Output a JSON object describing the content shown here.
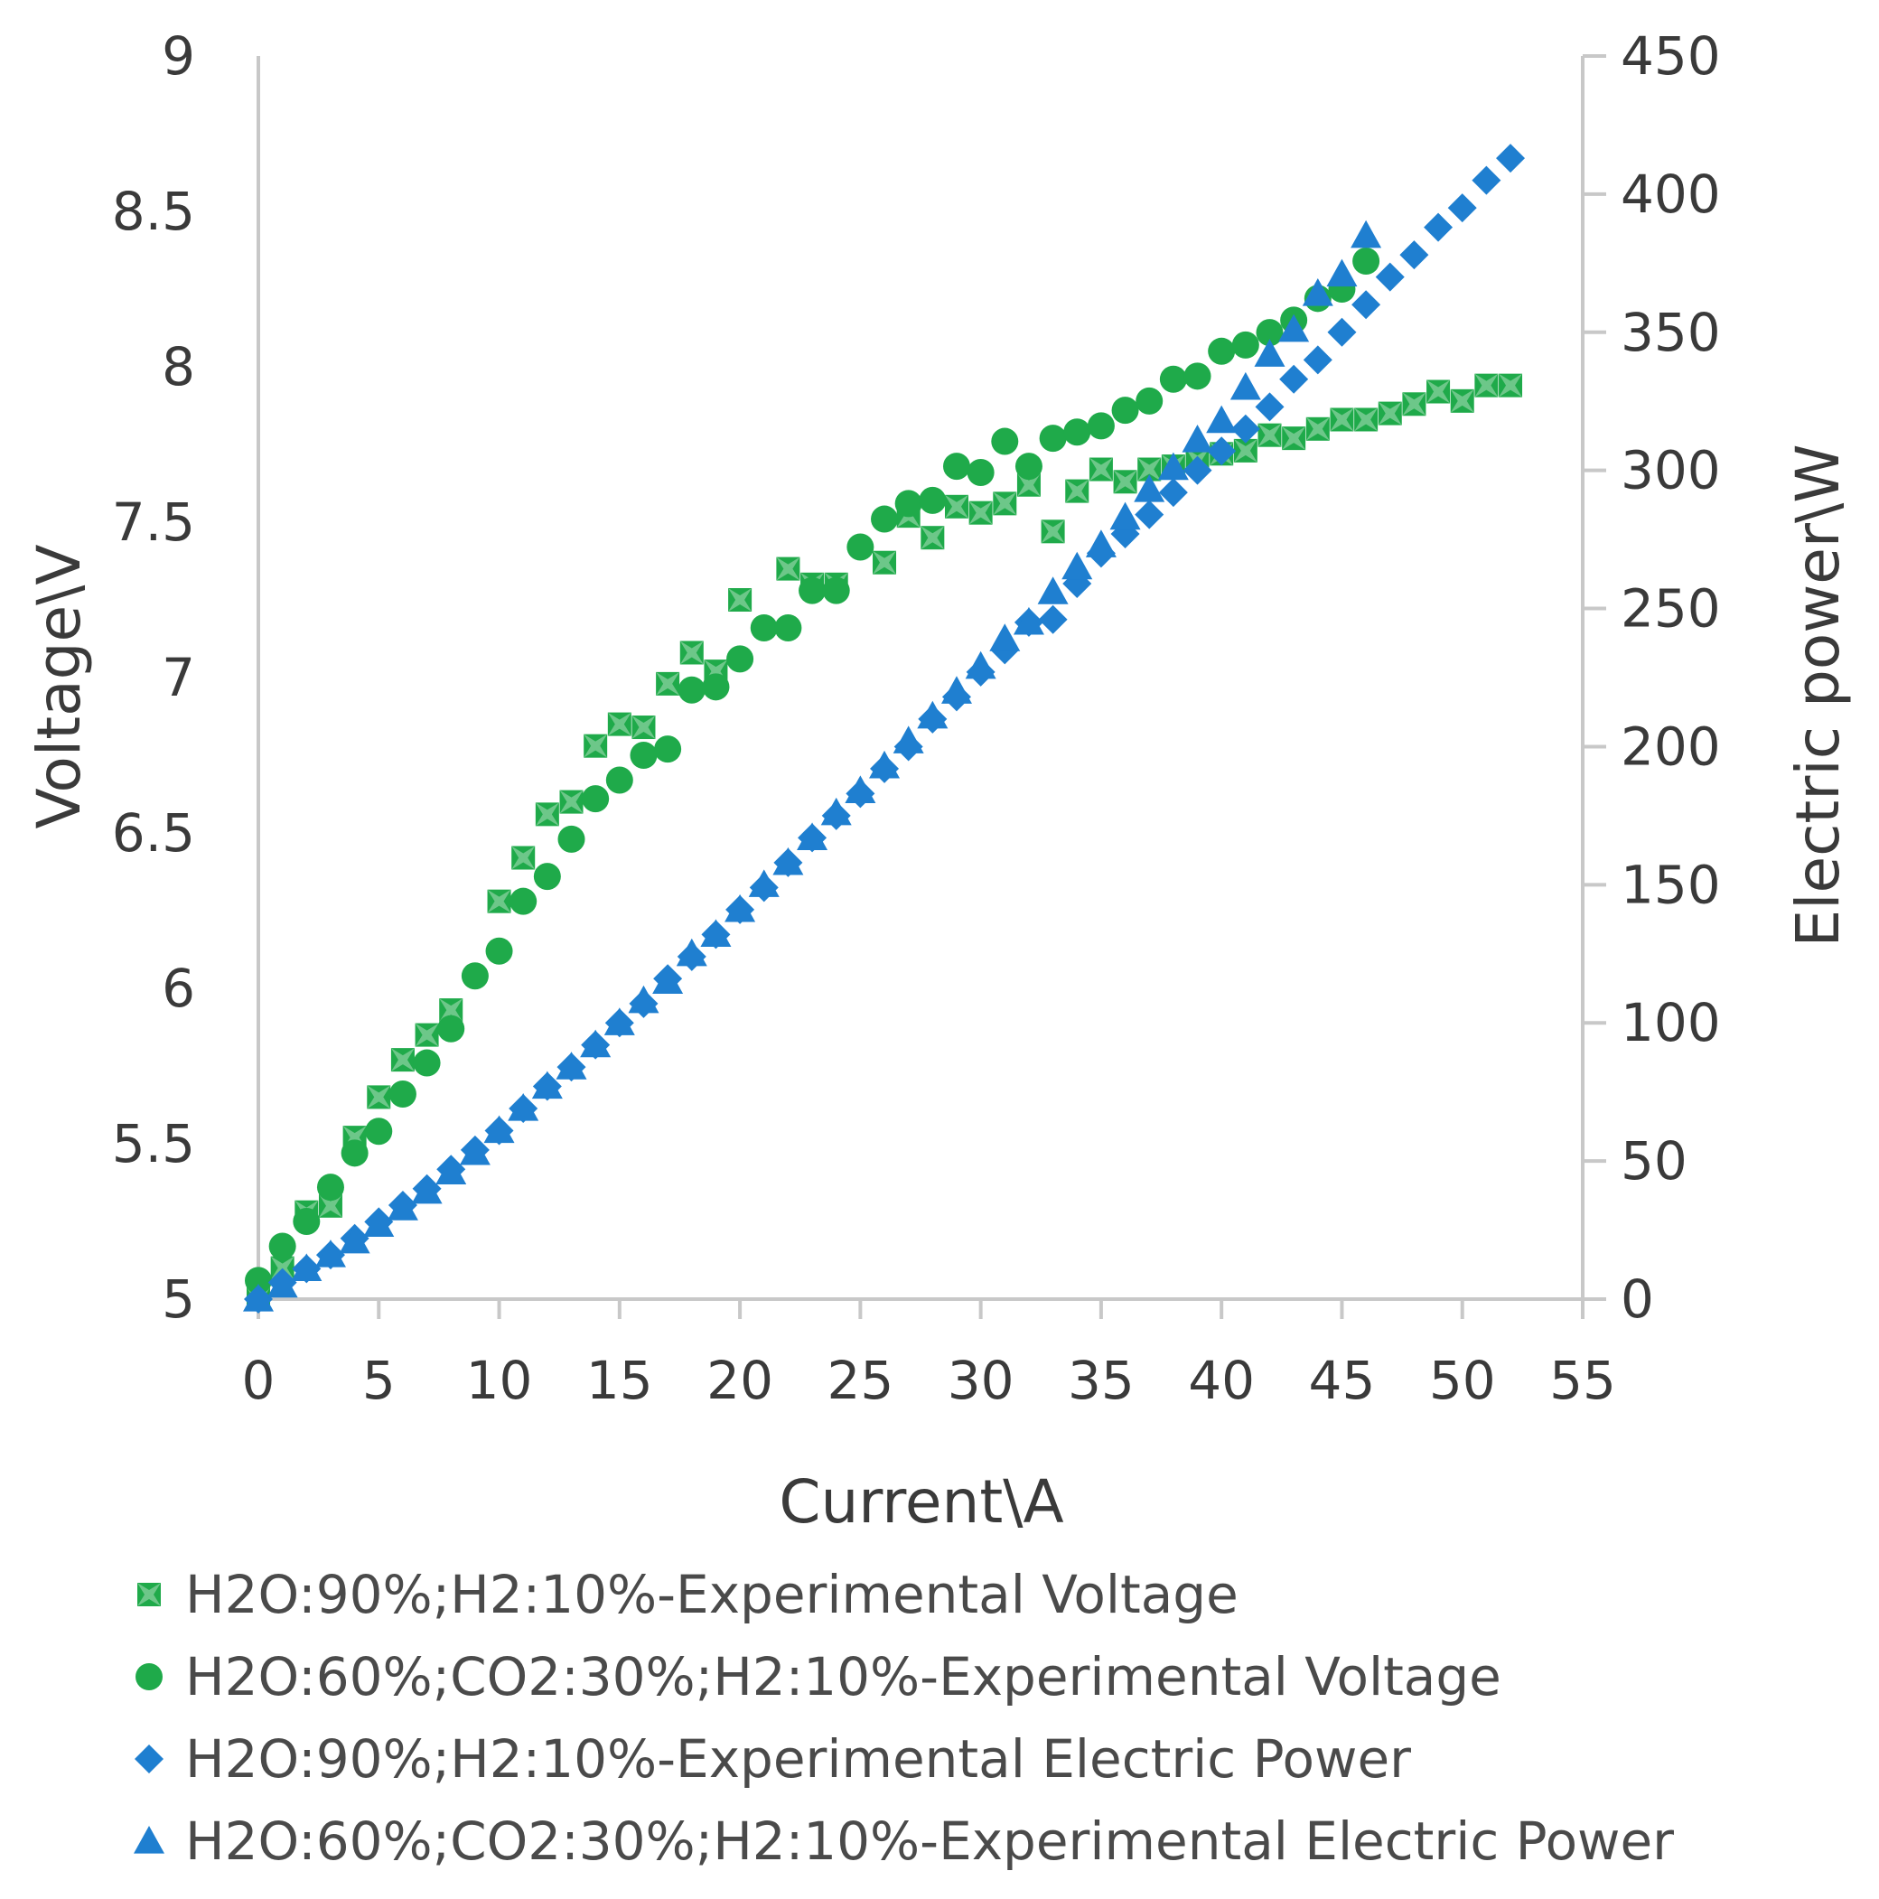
{
  "chart_data": {
    "type": "scatter",
    "title": "",
    "xlabel": "Current\\A",
    "ylabel": "Voltage\\V",
    "y2label": "Electric power\\W",
    "xlim": [
      0,
      55
    ],
    "ylim": [
      5,
      9
    ],
    "y2lim": [
      0,
      450
    ],
    "xticks": [
      "0",
      "5",
      "10",
      "15",
      "20",
      "25",
      "30",
      "35",
      "40",
      "45",
      "50",
      "55"
    ],
    "yticks": [
      "5",
      "5.5",
      "6",
      "6.5",
      "7",
      "7.5",
      "8",
      "8.5",
      "9"
    ],
    "y2ticks": [
      "0",
      "50",
      "100",
      "150",
      "200",
      "250",
      "300",
      "350",
      "400",
      "450"
    ],
    "grid": false,
    "legend_position": "bottom",
    "series": [
      {
        "name": "H2O:90%;H2:10%-Experimental Voltage",
        "axis": "left",
        "marker": "star",
        "color": "#1faa4a",
        "points": [
          [
            0,
            5.0
          ],
          [
            1,
            5.1
          ],
          [
            2,
            5.28
          ],
          [
            3,
            5.3
          ],
          [
            4,
            5.52
          ],
          [
            5,
            5.65
          ],
          [
            6,
            5.77
          ],
          [
            7,
            5.85
          ],
          [
            8,
            5.93
          ],
          [
            10,
            6.28
          ],
          [
            11,
            6.42
          ],
          [
            12,
            6.56
          ],
          [
            13,
            6.6
          ],
          [
            14,
            6.78
          ],
          [
            15,
            6.85
          ],
          [
            16,
            6.84
          ],
          [
            17,
            6.98
          ],
          [
            18,
            7.08
          ],
          [
            19,
            7.02
          ],
          [
            20,
            7.25
          ],
          [
            22,
            7.35
          ],
          [
            23,
            7.3
          ],
          [
            24,
            7.3
          ],
          [
            26,
            7.37
          ],
          [
            27,
            7.52
          ],
          [
            28,
            7.45
          ],
          [
            29,
            7.55
          ],
          [
            30,
            7.53
          ],
          [
            31,
            7.56
          ],
          [
            32,
            7.62
          ],
          [
            33,
            7.47
          ],
          [
            34,
            7.6
          ],
          [
            35,
            7.67
          ],
          [
            36,
            7.63
          ],
          [
            37,
            7.67
          ],
          [
            38,
            7.68
          ],
          [
            39,
            7.7
          ],
          [
            40,
            7.72
          ],
          [
            41,
            7.73
          ],
          [
            42,
            7.78
          ],
          [
            43,
            7.77
          ],
          [
            44,
            7.8
          ],
          [
            45,
            7.83
          ],
          [
            46,
            7.83
          ],
          [
            47,
            7.85
          ],
          [
            48,
            7.88
          ],
          [
            49,
            7.92
          ],
          [
            50,
            7.89
          ],
          [
            51,
            7.94
          ],
          [
            52,
            7.94
          ]
        ]
      },
      {
        "name": "H2O:60%;CO2:30%;H2:10%-Experimental Voltage",
        "axis": "left",
        "marker": "circle",
        "color": "#1faa4a",
        "points": [
          [
            0,
            5.06
          ],
          [
            1,
            5.17
          ],
          [
            2,
            5.25
          ],
          [
            3,
            5.36
          ],
          [
            4,
            5.47
          ],
          [
            5,
            5.54
          ],
          [
            6,
            5.66
          ],
          [
            7,
            5.76
          ],
          [
            8,
            5.87
          ],
          [
            9,
            6.04
          ],
          [
            10,
            6.12
          ],
          [
            11,
            6.28
          ],
          [
            12,
            6.36
          ],
          [
            13,
            6.48
          ],
          [
            14,
            6.61
          ],
          [
            15,
            6.67
          ],
          [
            16,
            6.75
          ],
          [
            17,
            6.77
          ],
          [
            18,
            6.96
          ],
          [
            19,
            6.97
          ],
          [
            20,
            7.06
          ],
          [
            21,
            7.16
          ],
          [
            22,
            7.16
          ],
          [
            23,
            7.28
          ],
          [
            24,
            7.28
          ],
          [
            25,
            7.42
          ],
          [
            26,
            7.51
          ],
          [
            27,
            7.56
          ],
          [
            28,
            7.57
          ],
          [
            29,
            7.68
          ],
          [
            30,
            7.66
          ],
          [
            31,
            7.76
          ],
          [
            32,
            7.68
          ],
          [
            33,
            7.77
          ],
          [
            34,
            7.79
          ],
          [
            35,
            7.81
          ],
          [
            36,
            7.86
          ],
          [
            37,
            7.89
          ],
          [
            38,
            7.96
          ],
          [
            39,
            7.97
          ],
          [
            40,
            8.05
          ],
          [
            41,
            8.07
          ],
          [
            42,
            8.11
          ],
          [
            43,
            8.15
          ],
          [
            44,
            8.22
          ],
          [
            45,
            8.25
          ],
          [
            46,
            8.34
          ]
        ]
      },
      {
        "name": "H2O:90%;H2:10%-Experimental Electric Power",
        "axis": "right",
        "marker": "diamond",
        "color": "#1f7fd0",
        "points": [
          [
            0,
            0
          ],
          [
            1,
            6
          ],
          [
            2,
            11
          ],
          [
            3,
            16
          ],
          [
            4,
            22
          ],
          [
            5,
            28
          ],
          [
            6,
            34
          ],
          [
            7,
            40
          ],
          [
            8,
            47
          ],
          [
            9,
            54
          ],
          [
            10,
            61
          ],
          [
            11,
            69
          ],
          [
            12,
            77
          ],
          [
            13,
            84
          ],
          [
            14,
            92
          ],
          [
            15,
            100
          ],
          [
            16,
            107
          ],
          [
            17,
            116
          ],
          [
            18,
            124
          ],
          [
            19,
            132
          ],
          [
            20,
            141
          ],
          [
            21,
            149
          ],
          [
            22,
            158
          ],
          [
            23,
            167
          ],
          [
            24,
            175
          ],
          [
            25,
            183
          ],
          [
            26,
            192
          ],
          [
            27,
            200
          ],
          [
            28,
            210
          ],
          [
            29,
            218
          ],
          [
            30,
            227
          ],
          [
            31,
            235
          ],
          [
            32,
            245
          ],
          [
            33,
            246
          ],
          [
            34,
            259
          ],
          [
            35,
            270
          ],
          [
            36,
            277
          ],
          [
            37,
            284
          ],
          [
            38,
            292
          ],
          [
            39,
            300
          ],
          [
            40,
            307
          ],
          [
            41,
            315
          ],
          [
            42,
            323
          ],
          [
            43,
            333
          ],
          [
            44,
            340
          ],
          [
            45,
            350
          ],
          [
            46,
            360
          ],
          [
            47,
            370
          ],
          [
            48,
            378
          ],
          [
            49,
            388
          ],
          [
            50,
            395
          ],
          [
            51,
            405
          ],
          [
            52,
            413
          ]
        ]
      },
      {
        "name": "H2O:60%;CO2:30%;H2:10%-Experimental Electric Power",
        "axis": "right",
        "marker": "triangle",
        "color": "#1f7fd0",
        "points": [
          [
            0,
            0
          ],
          [
            1,
            5
          ],
          [
            2,
            11
          ],
          [
            3,
            16
          ],
          [
            4,
            21
          ],
          [
            5,
            27
          ],
          [
            6,
            33
          ],
          [
            7,
            39
          ],
          [
            8,
            46
          ],
          [
            9,
            53
          ],
          [
            10,
            61
          ],
          [
            11,
            69
          ],
          [
            12,
            77
          ],
          [
            13,
            84
          ],
          [
            14,
            92
          ],
          [
            15,
            100
          ],
          [
            16,
            108
          ],
          [
            17,
            115
          ],
          [
            18,
            125
          ],
          [
            19,
            132
          ],
          [
            20,
            141
          ],
          [
            21,
            150
          ],
          [
            22,
            158
          ],
          [
            23,
            167
          ],
          [
            24,
            176
          ],
          [
            25,
            184
          ],
          [
            26,
            193
          ],
          [
            27,
            202
          ],
          [
            28,
            211
          ],
          [
            29,
            220
          ],
          [
            30,
            229
          ],
          [
            31,
            239
          ],
          [
            32,
            245
          ],
          [
            33,
            256
          ],
          [
            34,
            265
          ],
          [
            35,
            273
          ],
          [
            36,
            283
          ],
          [
            37,
            293
          ],
          [
            38,
            301
          ],
          [
            39,
            311
          ],
          [
            40,
            318
          ],
          [
            41,
            330
          ],
          [
            42,
            342
          ],
          [
            43,
            351
          ],
          [
            44,
            364
          ],
          [
            45,
            371
          ],
          [
            46,
            385
          ]
        ]
      }
    ]
  }
}
